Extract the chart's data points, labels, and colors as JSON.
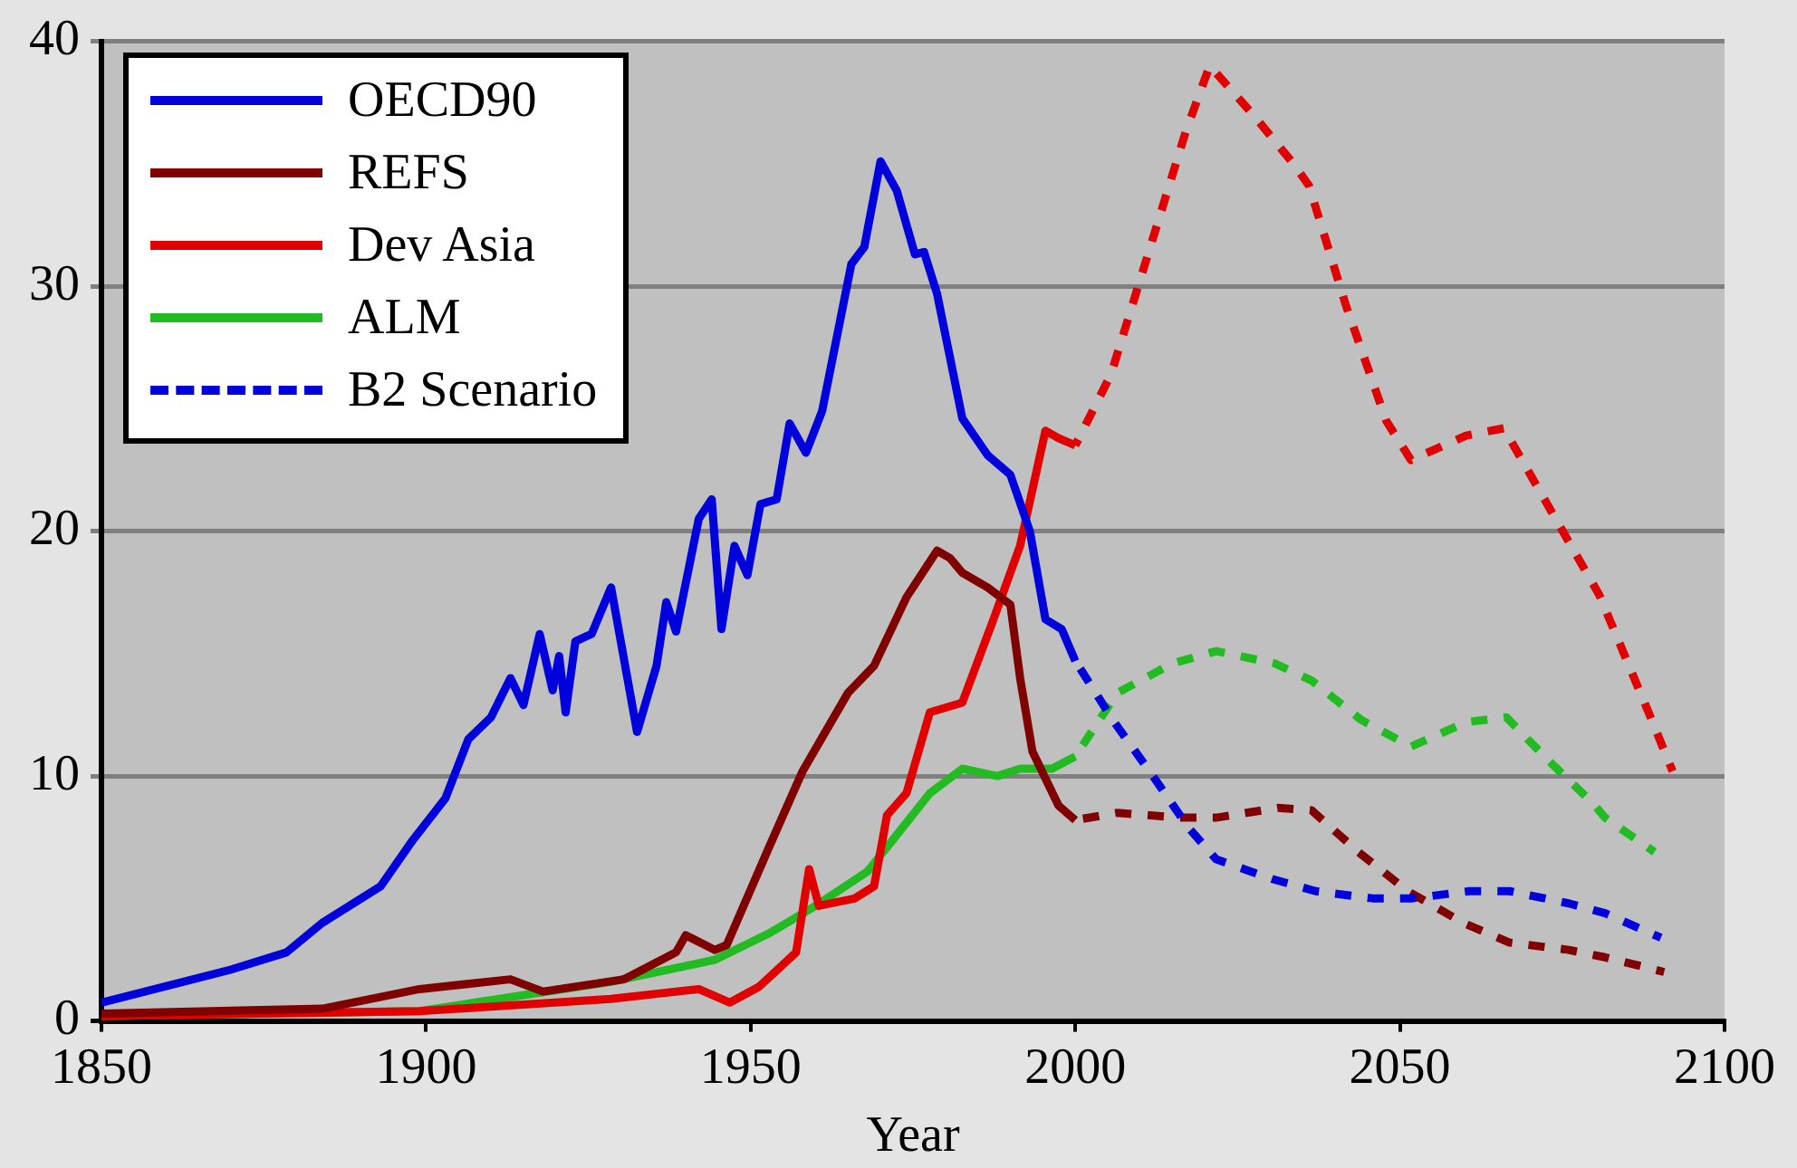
{
  "chart_data": {
    "type": "line",
    "xlabel": "Year",
    "xlim": [
      1850,
      2100
    ],
    "xticks": [
      1850,
      1900,
      1950,
      2000,
      2050,
      2100
    ],
    "ylim": [
      0,
      40
    ],
    "yticks": [
      0,
      10,
      20,
      30,
      40
    ],
    "grid": "y",
    "legend": "top left",
    "marker": "none",
    "series": [
      {
        "name": "OECD90",
        "color": "#0000dd",
        "line_style": "solid",
        "x": [
          1850,
          1870,
          1878.5,
          1884,
          1893,
          1898,
          1903,
          1906.5,
          1910,
          1913,
          1915,
          1917.5,
          1919.5,
          1920.5,
          1921.5,
          1923,
          1925.5,
          1928.5,
          1932.5,
          1935.5,
          1937,
          1938.5,
          1942,
          1944,
          1945.5,
          1947.5,
          1949.5,
          1951.5,
          1954,
          1956,
          1958.5,
          1961,
          1965.5,
          1967.5,
          1970,
          1972.5,
          1975.3,
          1976.7,
          1978.7,
          1982.6,
          1986.5,
          1990,
          1993,
          1995.4,
          1997.9,
          2000
        ],
        "values": [
          0.75,
          2.1,
          2.8,
          4.0,
          5.5,
          7.4,
          9.1,
          11.5,
          12.4,
          14.0,
          12.9,
          15.8,
          13.5,
          14.9,
          12.6,
          15.5,
          15.8,
          17.7,
          11.8,
          14.5,
          17.1,
          15.9,
          20.5,
          21.3,
          16.0,
          19.4,
          18.2,
          21.1,
          21.3,
          24.4,
          23.2,
          24.9,
          30.9,
          31.6,
          35.1,
          33.9,
          31.3,
          31.4,
          29.7,
          24.6,
          23.1,
          22.3,
          20.0,
          16.4,
          16.0,
          14.7
        ]
      },
      {
        "name": "REFS",
        "color": "#800000",
        "line_style": "solid",
        "x": [
          1850,
          1884,
          1899,
          1913,
          1918,
          1930.5,
          1938.5,
          1940,
          1944.5,
          1946.3,
          1953,
          1958,
          1965,
          1969,
          1974,
          1978.7,
          1980.7,
          1982.6,
          1986.5,
          1990,
          1991.5,
          1993.4,
          1997.4,
          2000
        ],
        "values": [
          0.3,
          0.5,
          1.3,
          1.7,
          1.2,
          1.7,
          2.8,
          3.5,
          2.9,
          3.1,
          7.2,
          10.2,
          13.4,
          14.5,
          17.3,
          19.2,
          18.9,
          18.3,
          17.7,
          17.0,
          14.0,
          11.0,
          8.8,
          8.2
        ]
      },
      {
        "name": "Dev Asia",
        "color": "#e00000",
        "line_style": "solid",
        "x": [
          1850,
          1899,
          1928.5,
          1942,
          1946.8,
          1951.3,
          1957,
          1959,
          1960.5,
          1966,
          1969,
          1971,
          1974,
          1977.6,
          1982.6,
          1987.4,
          1991.5,
          1995.4,
          1997.4,
          2000
        ],
        "values": [
          0.2,
          0.4,
          0.9,
          1.3,
          0.75,
          1.4,
          2.8,
          6.2,
          4.7,
          5.0,
          5.5,
          8.4,
          9.3,
          12.6,
          13.0,
          16.4,
          19.4,
          24.1,
          23.8,
          23.5
        ]
      },
      {
        "name": "ALM",
        "color": "#22bb22",
        "line_style": "solid",
        "x": [
          1850,
          1899,
          1928.5,
          1944.5,
          1953,
          1960,
          1968,
          1977.6,
          1982.6,
          1988,
          1991.5,
          1996.4,
          2000
        ],
        "values": [
          0.2,
          0.4,
          1.6,
          2.5,
          3.6,
          4.7,
          6.1,
          9.3,
          10.3,
          10.0,
          10.3,
          10.3,
          10.8
        ]
      },
      {
        "name": "B2 Scenario",
        "color": "#0000dd",
        "line_style": "dashed",
        "x": [
          2000,
          2006,
          2011.7,
          2017.4,
          2021.7,
          2030.3,
          2037,
          2046,
          2051.7,
          2060.7,
          2066.9,
          2076,
          2081.6,
          2090.2
        ],
        "values": [
          14.7,
          12.2,
          10.1,
          7.9,
          6.6,
          5.8,
          5.3,
          5.0,
          5.0,
          5.3,
          5.3,
          4.8,
          4.4,
          3.4
        ]
      },
      {
        "color": "#800000",
        "line_style": "dashed",
        "x": [
          2000,
          2006.5,
          2016,
          2021.7,
          2031.2,
          2036.4,
          2043.6,
          2051.2,
          2059.8,
          2066.9,
          2076,
          2081.6,
          2090.7
        ],
        "values": [
          8.2,
          8.5,
          8.3,
          8.3,
          8.7,
          8.6,
          6.9,
          5.3,
          4.0,
          3.2,
          2.9,
          2.6,
          2.0
        ]
      },
      {
        "color": "#e00000",
        "line_style": "dashed",
        "x": [
          2000,
          2005.5,
          2011.2,
          2017,
          2020.7,
          2027.4,
          2033.6,
          2036,
          2041.7,
          2047.9,
          2051.7,
          2060.2,
          2066,
          2075.5,
          2080.7,
          2088.3,
          2092
        ],
        "values": [
          23.5,
          26.4,
          31.3,
          36.3,
          39.0,
          37.0,
          35.0,
          34.1,
          29.2,
          24.5,
          22.9,
          23.9,
          24.2,
          19.8,
          17.4,
          12.6,
          10.2
        ]
      },
      {
        "color": "#22bb22",
        "line_style": "dashed",
        "x": [
          2000,
          2006.5,
          2015,
          2021.7,
          2030.7,
          2036.4,
          2044,
          2051.7,
          2060.2,
          2066.4,
          2073,
          2079.7,
          2081.6,
          2089.2
        ],
        "values": [
          10.8,
          13.4,
          14.6,
          15.1,
          14.6,
          13.9,
          12.3,
          11.2,
          12.2,
          12.4,
          10.6,
          8.9,
          8.3,
          6.9
        ]
      }
    ]
  }
}
